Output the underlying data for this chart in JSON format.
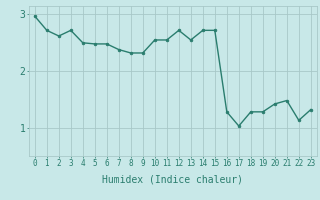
{
  "xlabel": "Humidex (Indice chaleur)",
  "x_values": [
    0,
    1,
    2,
    3,
    4,
    5,
    6,
    7,
    8,
    9,
    10,
    11,
    12,
    13,
    14,
    15,
    16,
    17,
    18,
    19,
    20,
    21,
    22,
    23
  ],
  "y_values": [
    2.97,
    2.72,
    2.62,
    2.72,
    2.5,
    2.48,
    2.48,
    2.38,
    2.32,
    2.32,
    2.55,
    2.55,
    2.72,
    2.55,
    2.72,
    2.72,
    1.28,
    1.03,
    1.28,
    1.28,
    1.42,
    1.48,
    1.13,
    1.32
  ],
  "line_color": "#2a7d6e",
  "marker": "o",
  "marker_size": 2.0,
  "line_width": 1.0,
  "bg_color": "#c8e8e8",
  "grid_color": "#a8c8c8",
  "ylim": [
    0.5,
    3.15
  ],
  "xlim": [
    -0.5,
    23.5
  ],
  "yticks": [
    1,
    2,
    3
  ],
  "ytick_labels": [
    "1",
    "2",
    "3"
  ],
  "xtick_fontsize": 5.5,
  "ytick_fontsize": 7,
  "xlabel_fontsize": 7
}
